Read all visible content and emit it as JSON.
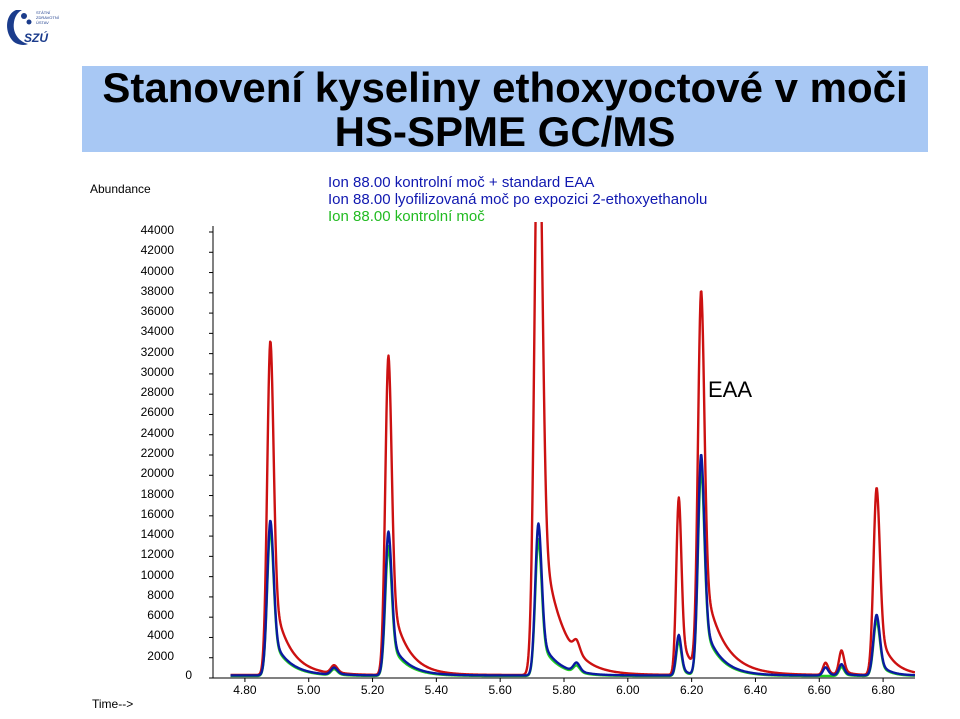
{
  "logo": {
    "text_lines": [
      "STÁTNÍ",
      "ZDRAVOTNÍ",
      "ÚSTAV"
    ],
    "mark": "SZÚ"
  },
  "title": {
    "line1": "Stanovení kyseliny ethoxyoctové v moči",
    "line2": "HS-SPME GC/MS"
  },
  "chart_data": {
    "type": "line",
    "ylabel": "Abundance",
    "xlabel": "Time-->",
    "ylim": [
      0,
      44000
    ],
    "xlim": [
      4.7,
      6.9
    ],
    "y_ticks": [
      "0",
      "2000",
      "4000",
      "6000",
      "8000",
      "10000",
      "12000",
      "14000",
      "16000",
      "18000",
      "20000",
      "22000",
      "24000",
      "26000",
      "28000",
      "30000",
      "32000",
      "34000",
      "36000",
      "38000",
      "40000",
      "42000",
      "44000"
    ],
    "x_ticks": [
      "4.80",
      "5.00",
      "5.20",
      "5.40",
      "5.60",
      "5.80",
      "6.00",
      "6.20",
      "6.40",
      "6.60",
      "6.80"
    ],
    "annotation": "EAA",
    "series": [
      {
        "name": "Ion  88.00  kontrolní moč + standard EAA",
        "color": "#cc1111",
        "baseline": 300,
        "peaks": [
          [
            4.88,
            33000,
            0.01,
            0.05
          ],
          [
            5.08,
            800,
            0.01,
            0.03
          ],
          [
            5.25,
            31500,
            0.01,
            0.05
          ],
          [
            5.72,
            60000,
            0.012,
            0.06
          ],
          [
            5.84,
            1200,
            0.01,
            0.02
          ],
          [
            6.16,
            17500,
            0.008,
            0.03
          ],
          [
            6.23,
            37500,
            0.01,
            0.06
          ],
          [
            6.62,
            1200,
            0.008,
            0.02
          ],
          [
            6.67,
            2400,
            0.008,
            0.02
          ],
          [
            6.78,
            18500,
            0.01,
            0.04
          ]
        ]
      },
      {
        "name": "Ion  88.00  lyofilizovaná moč po expozici 2-ethoxyethanolu",
        "color": "#0a1aa0",
        "baseline": 250,
        "peaks": [
          [
            4.88,
            15300,
            0.01,
            0.05
          ],
          [
            5.08,
            700,
            0.01,
            0.03
          ],
          [
            5.25,
            14200,
            0.01,
            0.05
          ],
          [
            5.72,
            15000,
            0.01,
            0.05
          ],
          [
            5.84,
            900,
            0.01,
            0.02
          ],
          [
            6.16,
            4000,
            0.008,
            0.02
          ],
          [
            6.23,
            21800,
            0.01,
            0.05
          ],
          [
            6.62,
            800,
            0.008,
            0.02
          ],
          [
            6.67,
            1100,
            0.008,
            0.02
          ],
          [
            6.78,
            6000,
            0.01,
            0.03
          ]
        ]
      },
      {
        "name": "Ion  88.00  kontrolní moč",
        "color": "#22cc22",
        "baseline": 200,
        "peaks": [
          [
            4.88,
            14500,
            0.01,
            0.05
          ],
          [
            5.08,
            600,
            0.01,
            0.03
          ],
          [
            5.25,
            12800,
            0.01,
            0.05
          ],
          [
            5.72,
            13500,
            0.01,
            0.05
          ],
          [
            5.84,
            700,
            0.01,
            0.02
          ],
          [
            6.16,
            3500,
            0.008,
            0.02
          ],
          [
            6.23,
            20500,
            0.01,
            0.05
          ],
          [
            6.67,
            900,
            0.008,
            0.02
          ],
          [
            6.78,
            5500,
            0.01,
            0.03
          ]
        ]
      }
    ]
  }
}
